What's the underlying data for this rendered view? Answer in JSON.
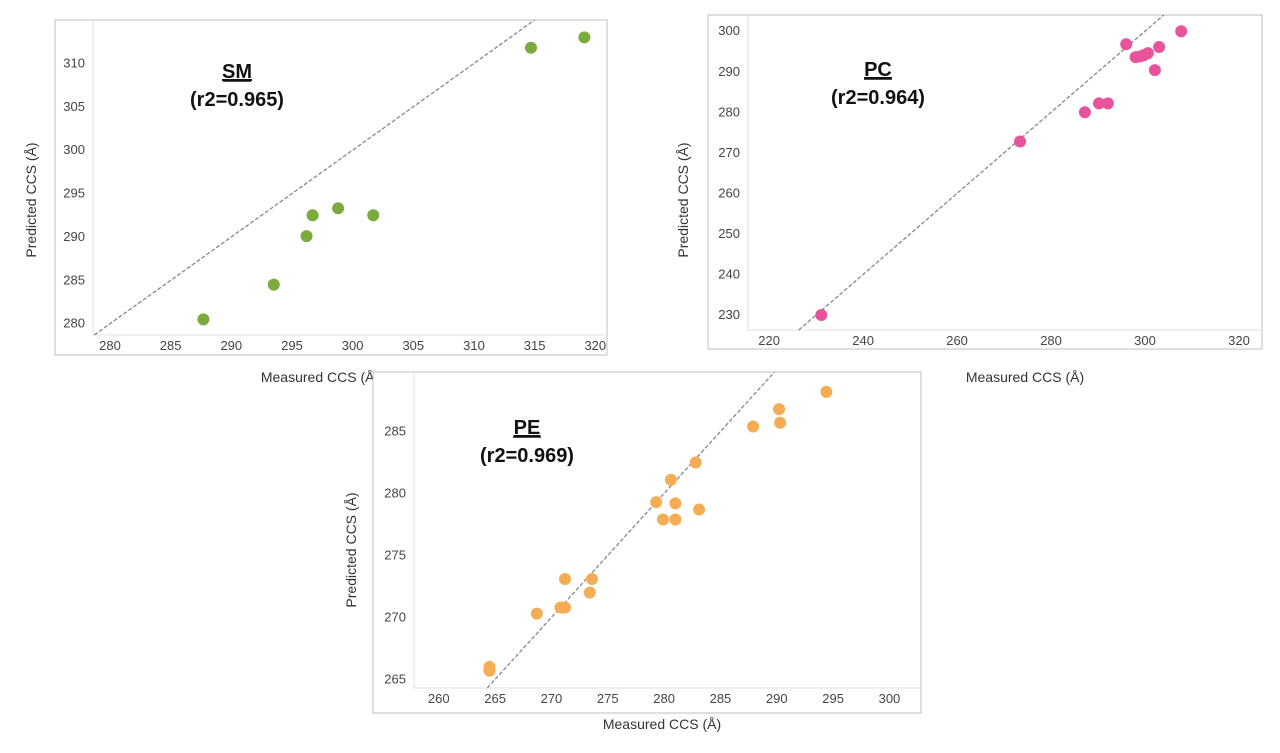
{
  "chart_data": [
    {
      "type": "scatter",
      "annotation": {
        "title": "SM",
        "subtitle": "(r2=0.965)"
      },
      "xlabel": "Measured CCS (Å)",
      "ylabel": "Predicted CCS (Å)",
      "xlim": [
        278.6,
        320.8
      ],
      "ylim": [
        278.7,
        315
      ],
      "xticks": [
        280,
        285,
        290,
        295,
        300,
        305,
        310,
        315,
        320
      ],
      "yticks": [
        280,
        285,
        290,
        295,
        300,
        305,
        310
      ],
      "color": "#7aab3c",
      "fit_line": "y = x (dashed)",
      "grid": false,
      "x": [
        287.7,
        293.5,
        296.2,
        296.7,
        298.8,
        301.7,
        314.7,
        319.1
      ],
      "y": [
        280.5,
        284.5,
        290.1,
        292.5,
        293.3,
        292.5,
        311.8,
        313.0
      ]
    },
    {
      "type": "scatter",
      "annotation": {
        "title": "PC",
        "subtitle": "(r2=0.964)"
      },
      "xlabel": "Measured CCS (Å)",
      "ylabel": "Predicted CCS (Å)",
      "xlim": [
        215.5,
        324.9
      ],
      "ylim": [
        226.3,
        304
      ],
      "xticks": [
        220,
        240,
        260,
        280,
        300,
        320
      ],
      "yticks": [
        230,
        240,
        250,
        260,
        270,
        280,
        290,
        300
      ],
      "color": "#e8549c",
      "fit_line": "y = x (dashed)",
      "grid": false,
      "x": [
        231.1,
        273.4,
        287.2,
        290.2,
        292.1,
        296.0,
        298.0,
        299.0,
        299.8,
        300.6,
        302.1,
        303.0,
        307.7
      ],
      "y": [
        230.0,
        272.8,
        280.0,
        282.2,
        282.2,
        296.8,
        293.6,
        293.8,
        294.1,
        294.6,
        290.4,
        296.1,
        300.0
      ]
    },
    {
      "type": "scatter",
      "annotation": {
        "title": "PE",
        "subtitle": "(r2=0.969)"
      },
      "xlabel": "Measured CCS (Å)",
      "ylabel": "Predicted CCS (Å)",
      "xlim": [
        257.8,
        302.8
      ],
      "ylim": [
        264.3,
        289.8
      ],
      "xticks": [
        260,
        265,
        270,
        275,
        280,
        285,
        290,
        295,
        300
      ],
      "yticks": [
        265,
        270,
        275,
        280,
        285
      ],
      "color": "#f5ad55",
      "fit_line": "y = x (dashed)",
      "grid": false,
      "x": [
        264.5,
        264.5,
        268.7,
        270.8,
        271.1,
        271.2,
        271.2,
        273.4,
        273.6,
        279.3,
        279.9,
        280.6,
        281.0,
        281.0,
        282.8,
        283.1,
        287.9,
        290.2,
        290.3,
        294.4
      ],
      "y": [
        266.0,
        265.7,
        270.3,
        270.8,
        270.8,
        273.1,
        270.8,
        272.0,
        273.1,
        279.3,
        277.9,
        281.1,
        279.2,
        277.9,
        282.5,
        278.7,
        285.4,
        286.8,
        285.7,
        288.2
      ]
    }
  ]
}
